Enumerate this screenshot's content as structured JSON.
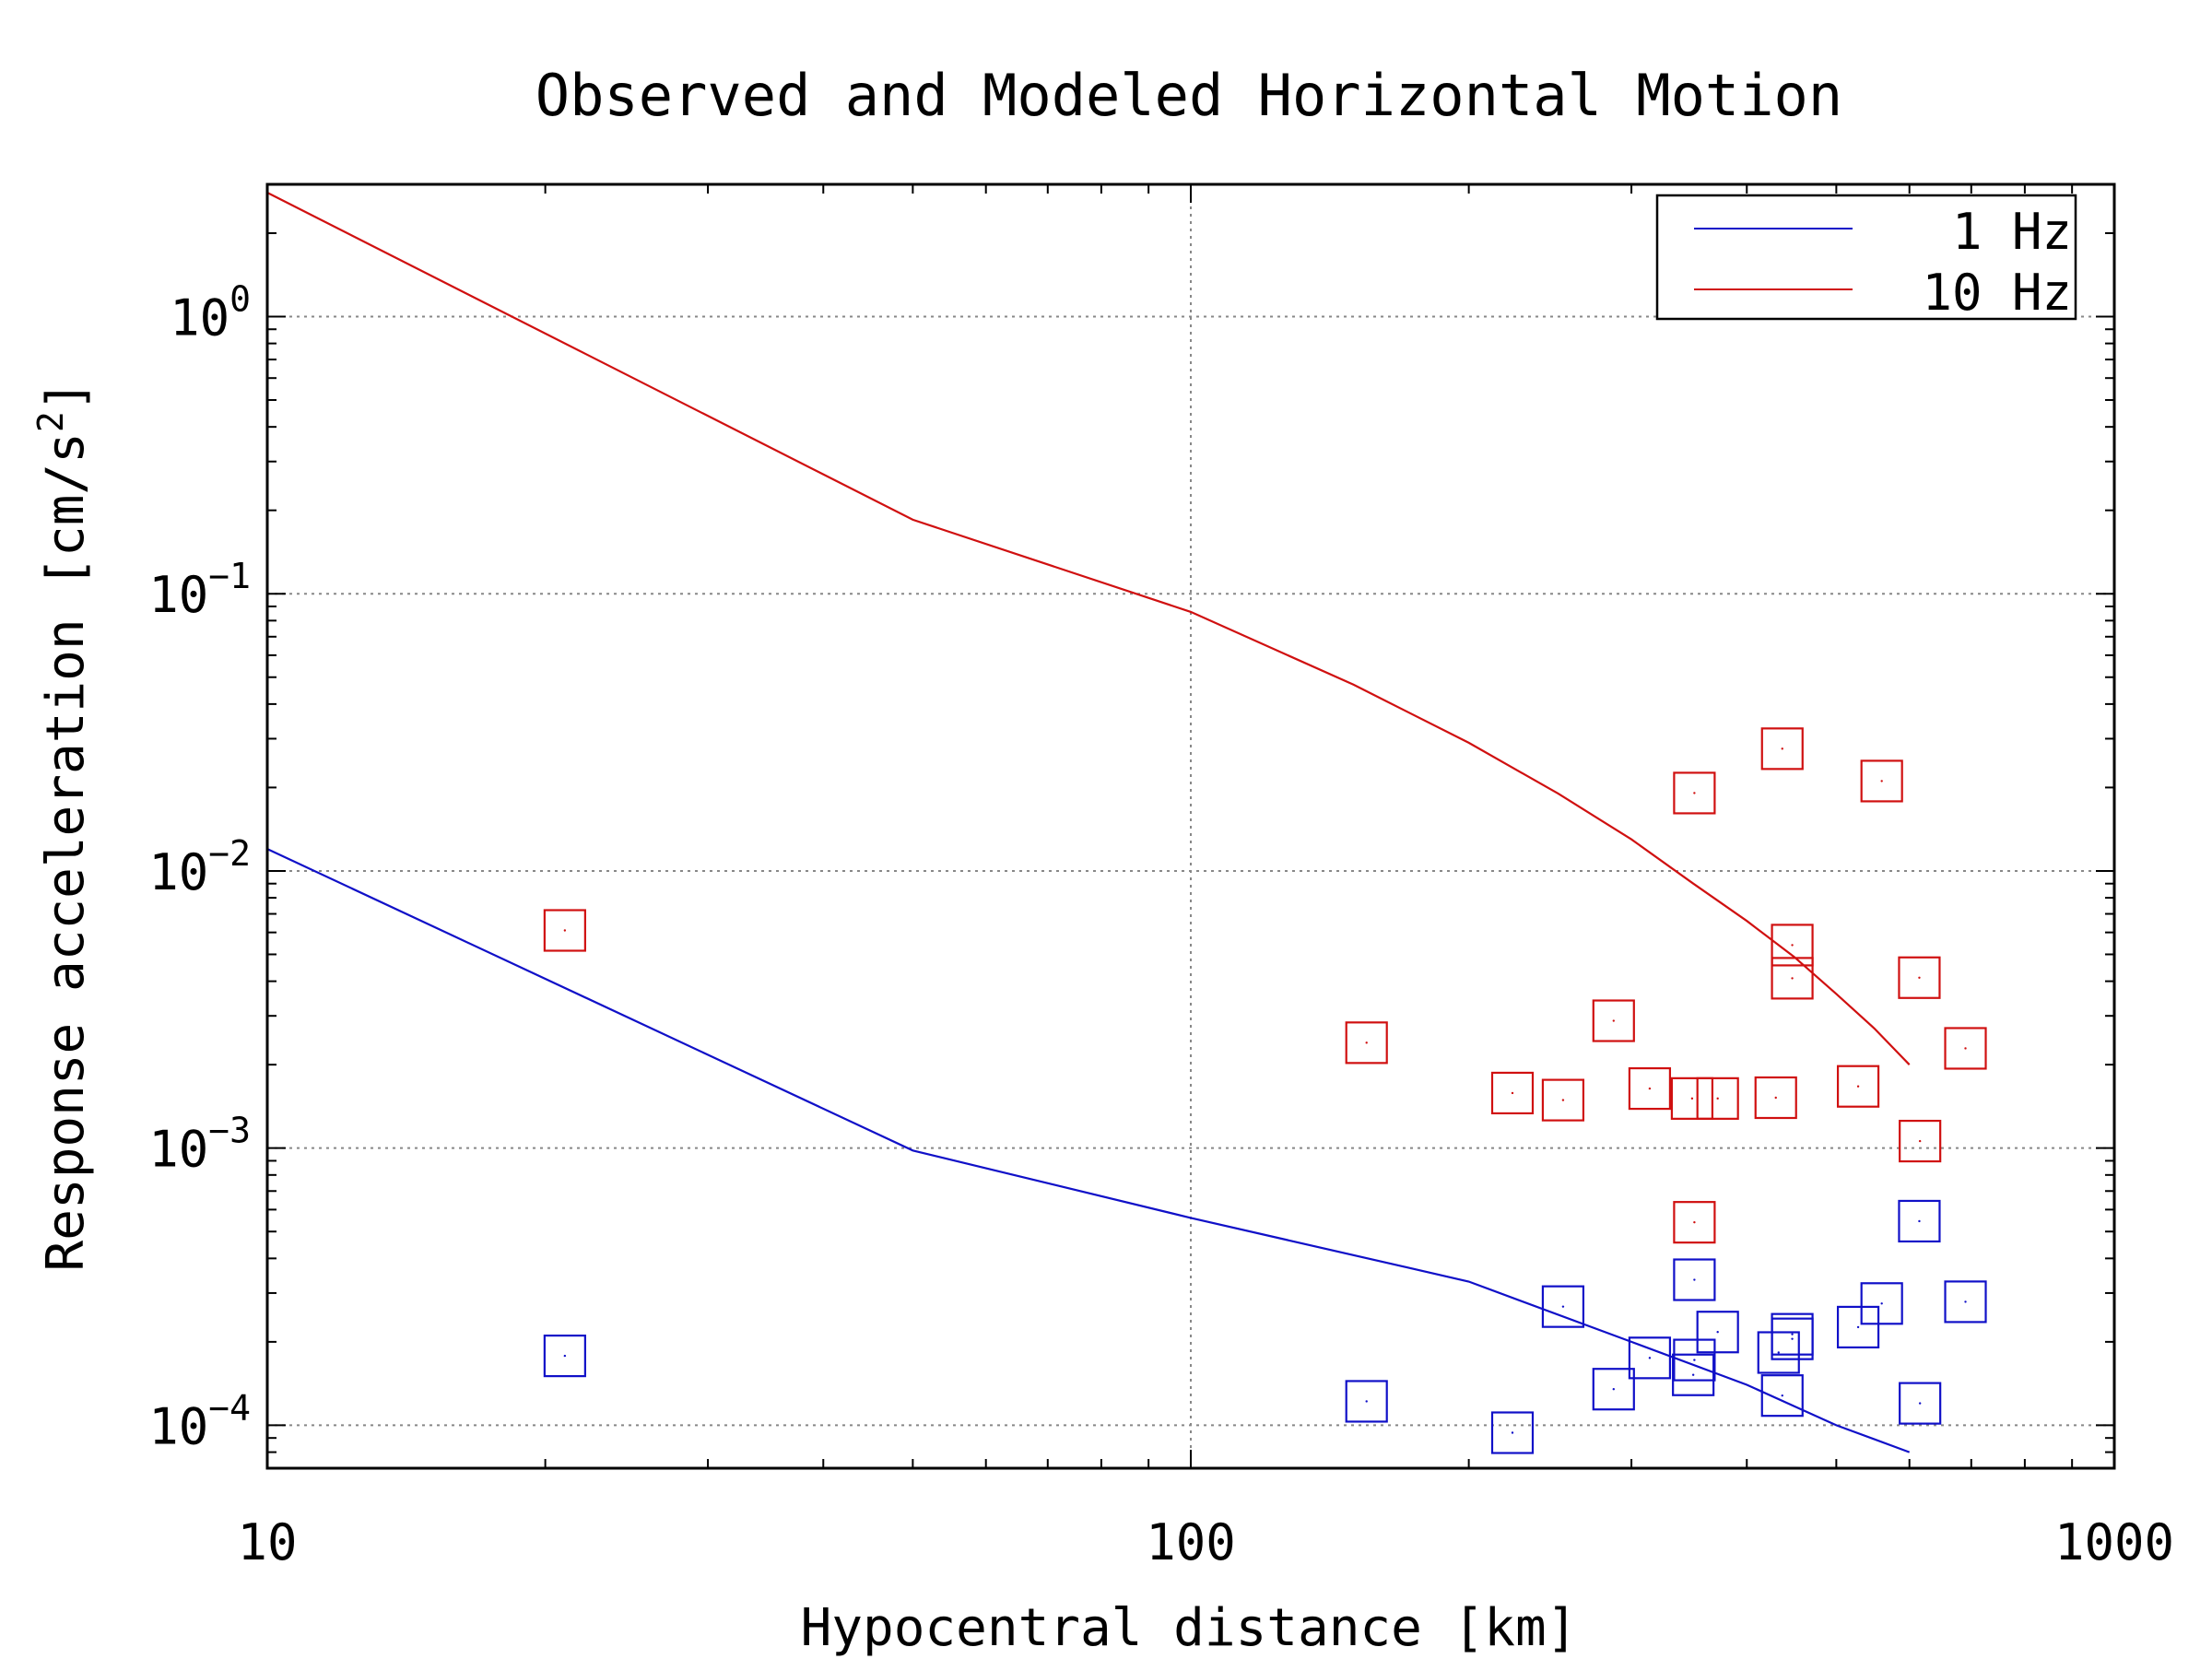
{
  "chart_data": {
    "type": "scatter",
    "title": "Observed and Modeled Horizontal Motion",
    "xlabel": "Hypocentral distance [km]",
    "ylabel": "Response acceleration [cm/s",
    "ylabel_sup": "2",
    "ylabel_end": "]",
    "x_scale": "log",
    "y_scale": "log",
    "xlim": [
      10,
      1000
    ],
    "ylim": [
      7e-05,
      3
    ],
    "x_ticks": [
      {
        "value": 10,
        "label": "10"
      },
      {
        "value": 100,
        "label": "100"
      },
      {
        "value": 1000,
        "label": "1000"
      }
    ],
    "y_ticks": [
      {
        "value": 1,
        "base": "10",
        "exp": "0"
      },
      {
        "value": 0.1,
        "base": "10",
        "exp": "−1"
      },
      {
        "value": 0.01,
        "base": "10",
        "exp": "−2"
      },
      {
        "value": 0.001,
        "base": "10",
        "exp": "−3"
      },
      {
        "value": 0.0001,
        "base": "10",
        "exp": "−4"
      }
    ],
    "grid": true,
    "legend_position": "top-right",
    "legend": [
      {
        "label": "1 Hz",
        "color": "#1010c8"
      },
      {
        "label": "10 Hz",
        "color": "#d01010"
      }
    ],
    "lines": [
      {
        "name": "1 Hz",
        "color": "#1010c8",
        "x": [
          10,
          50,
          100,
          200,
          300,
          400,
          500,
          600
        ],
        "y": [
          0.012,
          0.00098,
          0.00056,
          0.00033,
          0.0002,
          0.00014,
          0.0001,
          8e-05
        ]
      },
      {
        "name": "10 Hz",
        "color": "#d01010",
        "x": [
          10,
          50,
          100,
          150,
          200,
          250,
          300,
          350,
          400,
          450,
          500,
          550,
          600
        ],
        "y": [
          2.8,
          0.185,
          0.086,
          0.047,
          0.029,
          0.019,
          0.013,
          0.009,
          0.0066,
          0.0049,
          0.0036,
          0.0027,
          0.002
        ]
      }
    ],
    "series": [
      {
        "name": "1 Hz",
        "color": "#1010c8",
        "x": [
          21,
          155,
          223,
          253,
          287,
          314,
          350,
          351,
          351,
          372,
          433,
          437,
          448,
          448,
          528,
          560,
          615,
          616,
          690
        ],
        "y": [
          0.000178,
          0.000122,
          9.4e-05,
          0.000268,
          0.000135,
          0.000175,
          0.000152,
          0.000172,
          0.000335,
          0.000217,
          0.000183,
          0.000128,
          0.000205,
          0.000213,
          0.000226,
          0.000275,
          0.000545,
          0.00012,
          0.000279
        ]
      },
      {
        "name": "10 Hz",
        "color": "#d01010",
        "x": [
          21,
          155,
          223,
          253,
          287,
          314,
          349,
          351,
          351,
          372,
          430,
          437,
          448,
          448,
          528,
          560,
          615,
          616,
          690
        ],
        "y": [
          0.0061,
          0.0024,
          0.00158,
          0.00149,
          0.00288,
          0.00164,
          0.00151,
          0.0191,
          0.00054,
          0.00151,
          0.00152,
          0.0276,
          0.0041,
          0.0054,
          0.00167,
          0.0211,
          0.00412,
          0.00106,
          0.00229
        ]
      }
    ]
  }
}
